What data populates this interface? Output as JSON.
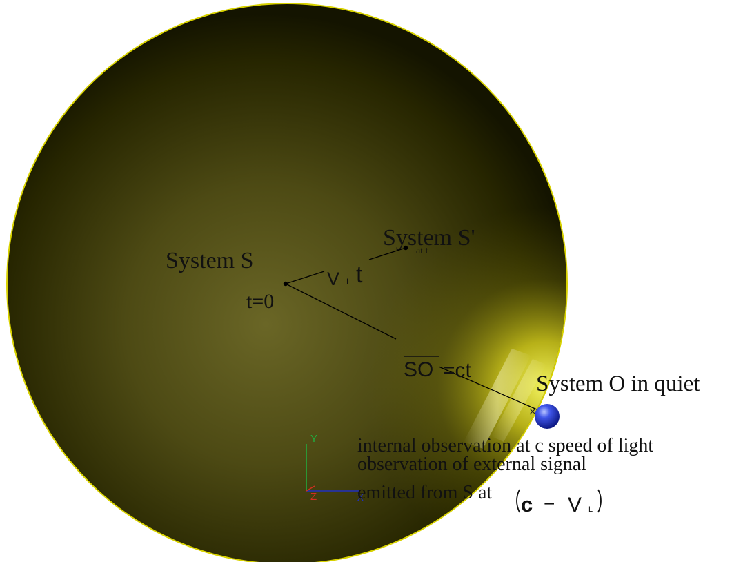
{
  "labels": {
    "system_s": "System S",
    "t_zero": "t=0",
    "system_s_prime": "System S'",
    "at_t": "at t",
    "velocity_v": "V",
    "velocity_sub": "L",
    "velocity_t": "t",
    "so": "SO",
    "so_equals": "=ct",
    "system_o": "System O in quiet",
    "internal_observation": "internal observation at c speed of light",
    "external_signal": "observation of external signal",
    "emitted_from": "emitted from S at",
    "formula_c": "c",
    "formula_minus": "−",
    "formula_v": "V",
    "formula_sub": "L",
    "axis_y": "Y",
    "axis_z": "Z",
    "axis_x": "X"
  },
  "colors": {
    "sphere_center": "#625e22",
    "sphere_edge": "#141400",
    "sphere_highlight": "#ffff3c",
    "ball": "#1d2fc8",
    "axis_y": "#20b040",
    "axis_x": "#2030c0",
    "axis_z": "#d03020"
  },
  "icons": {
    "observer": "blue-sphere-icon",
    "axes": "xyz-axes-icon"
  }
}
